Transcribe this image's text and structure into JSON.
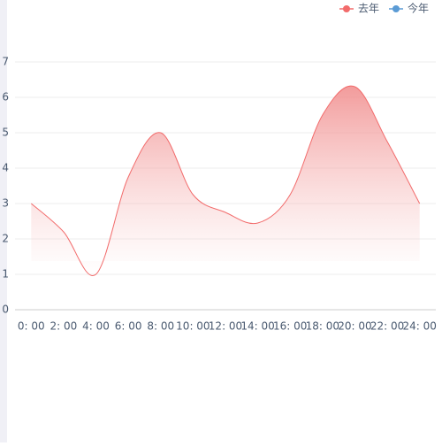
{
  "chart_data": {
    "type": "line",
    "categories": [
      "0: 00",
      "2: 00",
      "4: 00",
      "6: 00",
      "8: 00",
      "10: 00",
      "12: 00",
      "14: 00",
      "16: 00",
      "18: 00",
      "20: 00",
      "22: 00",
      "24: 00"
    ],
    "series": [
      {
        "name": "去年",
        "color": "#f26b6b",
        "values": [
          3,
          2.2,
          1,
          3.75,
          5,
          3.25,
          2.75,
          2.45,
          3.25,
          5.5,
          6.3,
          4.75,
          3
        ]
      },
      {
        "name": "今年",
        "color": "#5b9bd5",
        "values": [
          null,
          null,
          null,
          null,
          null,
          null,
          null,
          null,
          null,
          null,
          null,
          null,
          null
        ]
      }
    ],
    "ylim": [
      0,
      7
    ],
    "yticks": [
      0,
      1,
      2,
      3,
      4,
      5,
      6,
      7
    ],
    "grid": true,
    "area": true,
    "smooth": true,
    "legend": "top-right"
  }
}
